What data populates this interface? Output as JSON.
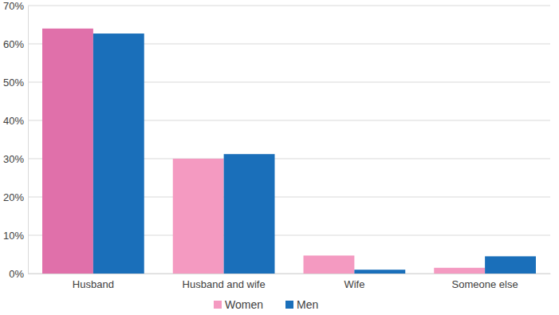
{
  "chart_data": {
    "type": "bar",
    "categories": [
      "Husband",
      "Husband and wife",
      "Wife",
      "Someone else"
    ],
    "series": [
      {
        "name": "Women",
        "color": "#f49ac1",
        "colors": [
          "#e070aa",
          "#f49ac1",
          "#f49ac1",
          "#f49ac1"
        ],
        "values": [
          64.0,
          30.0,
          4.7,
          1.5
        ]
      },
      {
        "name": "Men",
        "color": "#1a6fba",
        "values": [
          62.7,
          31.2,
          1.0,
          4.5
        ]
      }
    ],
    "ylim": [
      0,
      70
    ],
    "yticks": [
      {
        "value": 0,
        "label": "0%"
      },
      {
        "value": 10,
        "label": "10%"
      },
      {
        "value": 20,
        "label": "20%"
      },
      {
        "value": 30,
        "label": "30%"
      },
      {
        "value": 40,
        "label": "40%"
      },
      {
        "value": 50,
        "label": "50%"
      },
      {
        "value": 60,
        "label": "60%"
      },
      {
        "value": 70,
        "label": "70%"
      }
    ],
    "grid": true,
    "legend": "bottom"
  }
}
